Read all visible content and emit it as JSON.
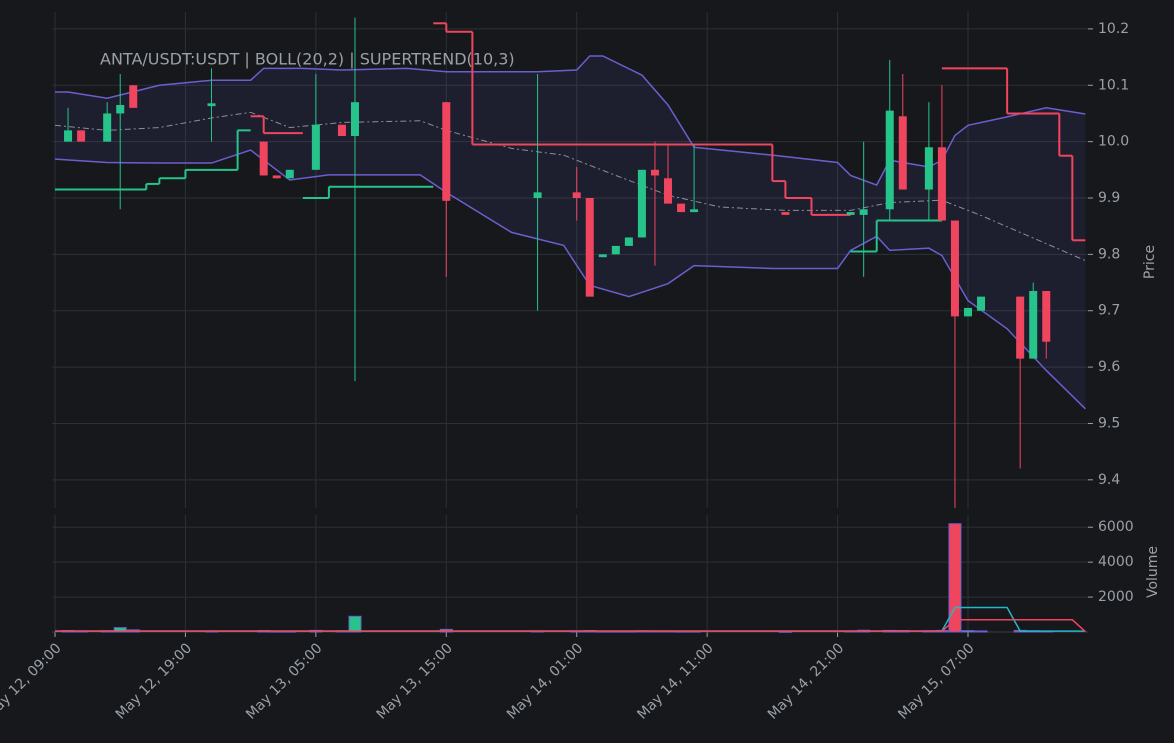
{
  "chart_data": {
    "type": "candlestick",
    "title": "ANTA/USDT:USDT | BOLL(20,2) | SUPERTREND(10,3)",
    "ylabel": "Price",
    "up_color": "#26c48a",
    "down_color": "#f0455f",
    "x": [
      "May 12, 10:00",
      "May 12, 11:00",
      "May 12, 13:00",
      "May 12, 14:00",
      "May 12, 15:00",
      "May 12, 21:00",
      "May 13, 01:00",
      "May 13, 02:00",
      "May 13, 03:00",
      "May 13, 05:00",
      "May 13, 07:00",
      "May 13, 08:00",
      "May 13, 15:00",
      "May 13, 22:00",
      "May 14, 01:00",
      "May 14, 02:00",
      "May 14, 03:00",
      "May 14, 04:00",
      "May 14, 05:00",
      "May 14, 06:00",
      "May 14, 07:00",
      "May 14, 08:00",
      "May 14, 09:00",
      "May 14, 10:00",
      "May 14, 17:00",
      "May 14, 22:00",
      "May 14, 23:00",
      "May 15, 01:00",
      "May 15, 02:00",
      "May 15, 04:00",
      "May 15, 05:00",
      "May 15, 06:00",
      "May 15, 07:00",
      "May 15, 08:00",
      "May 15, 11:00",
      "May 15, 12:00",
      "May 15, 13:00"
    ],
    "open": [
      10.0,
      10.02,
      10.0,
      10.05,
      10.1,
      10.063,
      10.0,
      9.94,
      9.935,
      9.95,
      10.03,
      10.01,
      10.07,
      9.9,
      9.91,
      9.9,
      9.795,
      9.8,
      9.815,
      9.83,
      9.95,
      9.935,
      9.89,
      9.875,
      9.875,
      9.87,
      9.87,
      9.88,
      10.045,
      9.915,
      9.99,
      9.86,
      9.69,
      9.7,
      9.725,
      9.615,
      9.735
    ],
    "high": [
      10.06,
      10.02,
      10.07,
      10.12,
      10.1,
      10.13,
      10.0,
      9.94,
      9.95,
      10.12,
      10.03,
      10.22,
      10.07,
      10.12,
      9.955,
      9.9,
      9.8,
      9.815,
      9.83,
      9.95,
      10.0,
      9.995,
      9.89,
      9.995,
      9.875,
      9.875,
      10.0,
      10.145,
      10.12,
      10.07,
      10.1,
      9.86,
      9.705,
      9.725,
      9.725,
      9.75,
      9.735
    ],
    "low": [
      10.0,
      10.0,
      10.0,
      9.88,
      10.06,
      10.0,
      9.94,
      9.935,
      9.935,
      9.95,
      10.01,
      9.575,
      9.76,
      9.7,
      9.86,
      9.725,
      9.795,
      9.8,
      9.815,
      9.83,
      9.78,
      9.89,
      9.875,
      9.875,
      9.87,
      9.87,
      9.76,
      9.86,
      9.915,
      9.86,
      9.86,
      9.35,
      9.69,
      9.7,
      9.42,
      9.615,
      9.615
    ],
    "close": [
      10.02,
      10.0,
      10.05,
      10.065,
      10.06,
      10.068,
      9.94,
      9.935,
      9.95,
      10.03,
      10.01,
      10.07,
      9.895,
      9.91,
      9.9,
      9.725,
      9.8,
      9.815,
      9.83,
      9.95,
      9.94,
      9.89,
      9.875,
      9.88,
      9.87,
      9.875,
      9.88,
      10.055,
      9.915,
      9.99,
      9.86,
      9.69,
      9.705,
      9.725,
      9.615,
      9.735,
      9.645
    ],
    "ylim": [
      9.35,
      10.23
    ],
    "yticks": [
      9.4,
      9.5,
      9.6,
      9.7,
      9.8,
      9.9,
      {
        "value": 10,
        "label": "10.0"
      },
      10.1,
      10.2
    ],
    "xticks": [
      "May 12, 09:00",
      "May 12, 19:00",
      "May 13, 05:00",
      "May 13, 15:00",
      "May 14, 01:00",
      "May 14, 11:00",
      "May 14, 21:00",
      "May 15, 07:00"
    ],
    "grid": true,
    "bands": {
      "color": "#6b5fcf",
      "mid_color": "#8a8f99",
      "upper": {
        "x": [
          "May 12, 09:00",
          "May 12, 10:00",
          "May 12, 13:00",
          "May 12, 17:00",
          "May 12, 21:00",
          "May 13, 00:00",
          "May 13, 01:00",
          "May 13, 04:00",
          "May 13, 07:00",
          "May 13, 12:00",
          "May 13, 15:00",
          "May 13, 22:00",
          "May 14, 01:00",
          "May 14, 02:00",
          "May 14, 03:00",
          "May 14, 06:00",
          "May 14, 08:00",
          "May 14, 10:00",
          "May 14, 16:00",
          "May 14, 21:00",
          "May 14, 22:00",
          "May 15, 00:00",
          "May 15, 01:00",
          "May 15, 04:00",
          "May 15, 05:00",
          "May 15, 06:00",
          "May 15, 07:00",
          "May 15, 10:00",
          "May 15, 13:00",
          "May 15, 16:00"
        ],
        "values": [
          10.088,
          10.088,
          10.077,
          10.1,
          10.109,
          10.109,
          10.13,
          10.13,
          10.127,
          10.13,
          10.124,
          10.124,
          10.127,
          10.152,
          10.152,
          10.118,
          10.065,
          9.99,
          9.976,
          9.963,
          9.94,
          9.923,
          9.967,
          9.955,
          9.967,
          10.011,
          10.029,
          10.044,
          10.06,
          10.049
        ]
      },
      "mid": {
        "x": [
          "May 12, 09:00",
          "May 12, 13:00",
          "May 12, 17:00",
          "May 12, 21:00",
          "May 13, 00:00",
          "May 13, 03:00",
          "May 13, 07:00",
          "May 13, 13:00",
          "May 13, 15:00",
          "May 13, 20:00",
          "May 14, 00:00",
          "May 14, 04:00",
          "May 14, 08:00",
          "May 14, 12:00",
          "May 14, 17:00",
          "May 14, 22:00",
          "May 15, 01:00",
          "May 15, 05:00",
          "May 15, 08:00",
          "May 15, 11:00",
          "May 15, 16:00"
        ],
        "values": [
          10.029,
          10.02,
          10.025,
          10.042,
          10.052,
          10.025,
          10.034,
          10.037,
          10.02,
          9.988,
          9.976,
          9.94,
          9.905,
          9.884,
          9.878,
          9.878,
          9.892,
          9.896,
          9.869,
          9.839,
          9.789
        ]
      },
      "lower": {
        "x": [
          "May 12, 09:00",
          "May 12, 13:00",
          "May 12, 17:00",
          "May 12, 21:00",
          "May 13, 00:00",
          "May 13, 03:00",
          "May 13, 06:00",
          "May 13, 13:00",
          "May 13, 15:00",
          "May 13, 20:00",
          "May 14, 00:00",
          "May 14, 02:00",
          "May 14, 05:00",
          "May 14, 08:00",
          "May 14, 10:00",
          "May 14, 16:00",
          "May 14, 21:00",
          "May 14, 22:00",
          "May 15, 00:00",
          "May 15, 01:00",
          "May 15, 04:00",
          "May 15, 05:00",
          "May 15, 07:00",
          "May 15, 10:00",
          "May 15, 13:00",
          "May 15, 16:00"
        ],
        "values": [
          9.969,
          9.963,
          9.962,
          9.962,
          9.985,
          9.932,
          9.941,
          9.941,
          9.91,
          9.839,
          9.816,
          9.745,
          9.725,
          9.748,
          9.78,
          9.775,
          9.775,
          9.807,
          9.832,
          9.807,
          9.811,
          9.798,
          9.718,
          9.668,
          9.594,
          9.526
        ]
      }
    },
    "supertrend": [
      {
        "color": "#26c48a",
        "x": [
          "May 12, 09:00",
          "May 12, 16:00",
          "May 12, 17:00",
          "May 12, 19:00",
          "May 12, 23:00",
          "May 13, 00:00",
          "May 13, 04:00",
          "May 13, 06:00",
          "May 13, 14:00",
          "May 14, 22:00",
          "May 15, 00:00",
          "May 15, 05:00"
        ],
        "values": [
          9.915,
          9.925,
          9.935,
          9.95,
          10.02,
          null,
          9.9,
          9.92,
          null,
          9.805,
          9.86,
          null
        ]
      },
      {
        "color": "#f0455f",
        "x": [
          "May 13, 00:00",
          "May 13, 01:00",
          "May 13, 04:00",
          "May 13, 14:00",
          "May 13, 15:00",
          "May 13, 17:00",
          "May 14, 16:00",
          "May 14, 17:00",
          "May 14, 19:00",
          "May 14, 22:00",
          "May 15, 05:00",
          "May 15, 10:00",
          "May 15, 14:00",
          "May 15, 15:00",
          "May 15, 16:00"
        ],
        "values": [
          10.045,
          10.015,
          null,
          10.21,
          10.195,
          9.995,
          9.93,
          9.9,
          9.87,
          null,
          10.13,
          10.05,
          9.975,
          9.825,
          9.825
        ]
      }
    ],
    "volume": {
      "ylabel": "Volume",
      "values": [
        80,
        60,
        70,
        250,
        120,
        60,
        80,
        50,
        50,
        90,
        70,
        900,
        150,
        60,
        60,
        80,
        50,
        50,
        50,
        70,
        60,
        60,
        50,
        50,
        40,
        60,
        100,
        90,
        80,
        70,
        90,
        6200,
        80,
        60,
        90,
        70,
        60
      ],
      "ylim": [
        0,
        6700
      ],
      "yticks": [
        2000,
        4000,
        6000
      ],
      "series": [
        {
          "color": "#22b8c8",
          "x": [
            "May 12, 09:00",
            "May 15, 05:00",
            "May 15, 06:00",
            "May 15, 10:00",
            "May 15, 11:00",
            "May 15, 16:00"
          ],
          "values": [
            60,
            60,
            1400,
            1400,
            50,
            50
          ]
        },
        {
          "color": "#f0455f",
          "x": [
            "May 12, 09:00",
            "May 15, 05:00",
            "May 15, 06:00",
            "May 15, 15:00",
            "May 15, 16:00"
          ],
          "values": [
            40,
            40,
            700,
            700,
            20
          ]
        }
      ]
    }
  }
}
